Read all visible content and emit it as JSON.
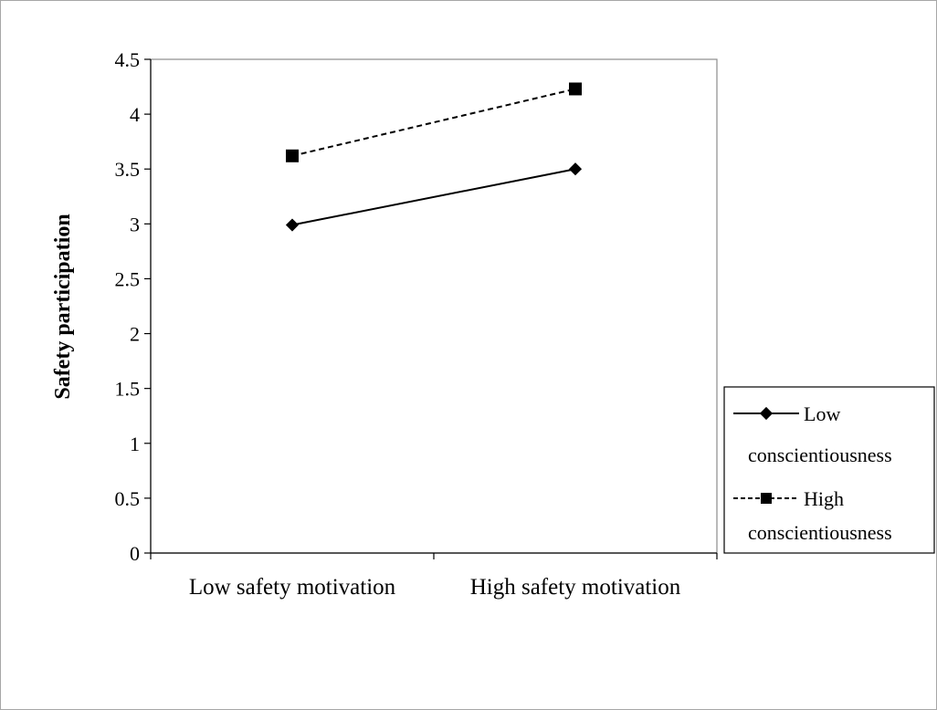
{
  "chart_data": {
    "type": "line",
    "title": "",
    "xlabel": "",
    "ylabel": "Safety participation",
    "categories": [
      "Low safety motivation",
      "High safety motivation"
    ],
    "ylim": [
      0,
      4.5
    ],
    "yticks": [
      0,
      0.5,
      1,
      1.5,
      2,
      2.5,
      3,
      3.5,
      4,
      4.5
    ],
    "ytick_labels": [
      "0",
      "0.5",
      "1",
      "1.5",
      "2",
      "2.5",
      "3",
      "3.5",
      "4",
      "4.5"
    ],
    "grid": false,
    "legend_position": "right",
    "series": [
      {
        "name": "Low conscientiousness",
        "legend_lines": [
          "Low",
          "conscientiousness"
        ],
        "values": [
          2.99,
          3.5
        ],
        "marker": "diamond",
        "line_style": "solid",
        "color": "#000000"
      },
      {
        "name": "High conscientiousness",
        "legend_lines": [
          "High",
          "conscientiousness"
        ],
        "values": [
          3.62,
          4.23
        ],
        "marker": "square",
        "line_style": "dashed",
        "color": "#000000"
      }
    ]
  }
}
